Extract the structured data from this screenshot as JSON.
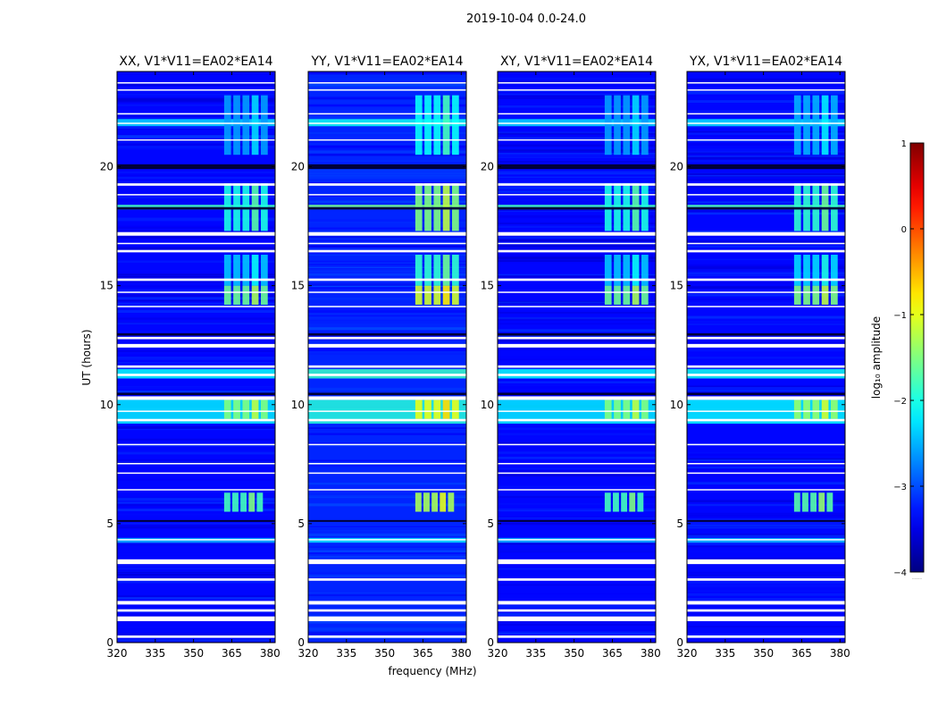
{
  "chart_data": {
    "type": "heatmap",
    "suptitle": "2019-10-04 0.0-24.0",
    "xlabel": "frequency (MHz)",
    "ylabel": "UT (hours)",
    "xlim": [
      320,
      382
    ],
    "ylim": [
      0,
      24
    ],
    "xticks": [
      320,
      335,
      350,
      365,
      380
    ],
    "yticks": [
      0,
      5,
      10,
      15,
      20
    ],
    "colorbar": {
      "label": "log₁₀ amplitude",
      "colormap": "jet",
      "vmin": -4,
      "vmax": 1,
      "ticks": [
        -4,
        -3,
        -2,
        -1,
        0,
        1
      ],
      "tick_labels": [
        "−4",
        "−3",
        "−2",
        "−1",
        "0",
        "1"
      ],
      "offset_text": "....."
    },
    "panels": [
      {
        "title": "XX, V1*V11=EA02*EA14",
        "product": "XX",
        "baseline_level": -3.35,
        "rfi_boost": 0.0
      },
      {
        "title": "YY, V1*V11=EA02*EA14",
        "product": "YY",
        "baseline_level": -3.2,
        "rfi_boost": 0.5
      },
      {
        "title": "XY, V1*V11=EA02*EA14",
        "product": "XY",
        "baseline_level": -3.35,
        "rfi_boost": 0.0
      },
      {
        "title": "YX, V1*V11=EA02*EA14",
        "product": "YX",
        "baseline_level": -3.35,
        "rfi_boost": 0.1
      }
    ],
    "flagged_white_bands_hours": [
      [
        0.2,
        0.3
      ],
      [
        0.9,
        1.1
      ],
      [
        1.3,
        1.4
      ],
      [
        1.6,
        1.75
      ],
      [
        2.6,
        2.7
      ],
      [
        3.3,
        3.5
      ],
      [
        4.3,
        4.35
      ],
      [
        6.4,
        6.45
      ],
      [
        7.1,
        7.15
      ],
      [
        7.5,
        7.55
      ],
      [
        8.3,
        8.35
      ],
      [
        9.3,
        9.4
      ],
      [
        9.7,
        9.75
      ],
      [
        10.2,
        10.35
      ],
      [
        11.2,
        11.3
      ],
      [
        11.55,
        11.65
      ],
      [
        12.4,
        12.55
      ],
      [
        12.75,
        12.85
      ],
      [
        14.1,
        14.15
      ],
      [
        14.7,
        14.75
      ],
      [
        15.2,
        15.3
      ],
      [
        16.4,
        16.5
      ],
      [
        17.1,
        17.25
      ],
      [
        16.75,
        16.8
      ],
      [
        18.8,
        18.85
      ],
      [
        19.2,
        19.3
      ],
      [
        21.1,
        21.15
      ],
      [
        21.8,
        21.85
      ],
      [
        22.2,
        22.25
      ],
      [
        23.2,
        23.25
      ],
      [
        23.5,
        23.55
      ]
    ],
    "dark_bands_hours": [
      [
        19.9,
        20.1
      ],
      [
        18.2,
        18.3
      ],
      [
        12.9,
        13.0
      ],
      [
        10.4,
        10.5
      ],
      [
        5.1,
        5.15
      ]
    ],
    "rfi_regions": [
      {
        "freq_mhz": [
          362,
          380
        ],
        "hours": [
          14.2,
          15.0
        ],
        "level": -1.6
      },
      {
        "freq_mhz": [
          362,
          380
        ],
        "hours": [
          9.4,
          10.2
        ],
        "level": -1.5
      },
      {
        "freq_mhz": [
          362,
          380
        ],
        "hours": [
          17.3,
          19.3
        ],
        "level": -2.0
      },
      {
        "freq_mhz": [
          362,
          378
        ],
        "hours": [
          5.5,
          6.3
        ],
        "level": -1.8
      },
      {
        "freq_mhz": [
          362,
          380
        ],
        "hours": [
          15.0,
          16.3
        ],
        "level": -2.4
      },
      {
        "freq_mhz": [
          362,
          380
        ],
        "hours": [
          20.5,
          23.0
        ],
        "level": -2.6
      }
    ],
    "broadband_bright_bands_hours": [
      {
        "hours": [
          9.2,
          10.2
        ],
        "level": -2.2
      },
      {
        "hours": [
          11.1,
          11.5
        ],
        "level": -2.1
      },
      {
        "hours": [
          18.2,
          18.4
        ],
        "level": -1.8
      },
      {
        "hours": [
          21.7,
          22.0
        ],
        "level": -2.3
      },
      {
        "hours": [
          4.2,
          4.4
        ],
        "level": -2.5
      }
    ]
  }
}
